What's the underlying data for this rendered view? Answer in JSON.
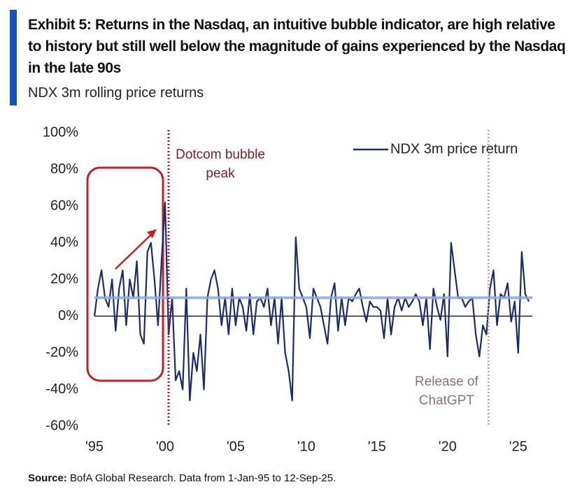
{
  "chart_data": {
    "type": "line",
    "title": "Exhibit 5: Returns in the Nasdaq, an intuitive bubble indicator, are high relative to history but still well below the magnitude of gains experienced by the Nasdaq in the late 90s",
    "subtitle": "NDX 3m rolling price returns",
    "source_label": "Source:",
    "source": "BofA Global Research. Data from 1-Jan-95 to 12-Sep-25.",
    "x": [
      1995,
      1995.25,
      1995.5,
      1995.75,
      1996,
      1996.25,
      1996.5,
      1996.75,
      1997,
      1997.25,
      1997.5,
      1997.75,
      1998,
      1998.25,
      1998.5,
      1998.75,
      1999,
      1999.25,
      1999.5,
      1999.75,
      2000,
      2000.25,
      2000.5,
      2000.75,
      2001,
      2001.25,
      2001.5,
      2001.75,
      2002,
      2002.25,
      2002.5,
      2002.75,
      2003,
      2003.25,
      2003.5,
      2003.75,
      2004,
      2004.25,
      2004.5,
      2004.75,
      2005,
      2005.25,
      2005.5,
      2005.75,
      2006,
      2006.25,
      2006.5,
      2006.75,
      2007,
      2007.25,
      2007.5,
      2007.75,
      2008,
      2008.25,
      2008.5,
      2008.75,
      2009,
      2009.25,
      2009.5,
      2009.75,
      2010,
      2010.25,
      2010.5,
      2010.75,
      2011,
      2011.25,
      2011.5,
      2011.75,
      2012,
      2012.25,
      2012.5,
      2012.75,
      2013,
      2013.25,
      2013.5,
      2013.75,
      2014,
      2014.25,
      2014.5,
      2014.75,
      2015,
      2015.25,
      2015.5,
      2015.75,
      2016,
      2016.25,
      2016.5,
      2016.75,
      2017,
      2017.25,
      2017.5,
      2017.75,
      2018,
      2018.25,
      2018.5,
      2018.75,
      2019,
      2019.25,
      2019.5,
      2019.75,
      2020,
      2020.25,
      2020.5,
      2020.75,
      2021,
      2021.25,
      2021.5,
      2021.75,
      2022,
      2022.25,
      2022.5,
      2022.75,
      2023,
      2023.25,
      2023.5,
      2023.75,
      2024,
      2024.25,
      2024.5,
      2024.75,
      2025,
      2025.25,
      2025.5,
      2025.75
    ],
    "series": [
      {
        "name": "NDX 3m price return",
        "color": "#1f2a6b",
        "values": [
          0,
          15,
          25,
          10,
          5,
          20,
          -8,
          15,
          25,
          -5,
          20,
          10,
          30,
          -10,
          -15,
          35,
          40,
          20,
          -5,
          30,
          62,
          -10,
          10,
          -35,
          -30,
          -40,
          15,
          -46,
          -20,
          -30,
          -10,
          -40,
          10,
          20,
          25,
          15,
          -5,
          10,
          -10,
          15,
          -5,
          10,
          5,
          -8,
          12,
          -10,
          8,
          10,
          5,
          15,
          -5,
          10,
          -15,
          10,
          -20,
          -30,
          -46,
          43,
          15,
          10,
          5,
          -12,
          15,
          10,
          5,
          -5,
          -15,
          10,
          18,
          -8,
          10,
          -5,
          10,
          8,
          12,
          15,
          5,
          -3,
          8,
          5,
          5,
          3,
          -12,
          10,
          -10,
          5,
          10,
          3,
          10,
          5,
          8,
          12,
          8,
          -5,
          10,
          -18,
          15,
          5,
          -2,
          12,
          -22,
          40,
          25,
          10,
          10,
          5,
          8,
          10,
          -10,
          -22,
          -5,
          -10,
          15,
          25,
          -5,
          12,
          10,
          18,
          -3,
          8,
          -20,
          35,
          12,
          8
        ]
      }
    ],
    "hlines": [
      {
        "value": 10,
        "color": "#8fa8d8"
      }
    ],
    "vlines": [
      {
        "value": 2000.25,
        "color": "#a01c2c",
        "text_color": "#7a1c28",
        "label": [
          "Dotcom bubble",
          "peak"
        ]
      },
      {
        "value": 2022.9,
        "color": "#c9a5b5",
        "text_color": "#8a7080",
        "label": [
          "Release of",
          "ChatGPT"
        ]
      }
    ],
    "xlim": [
      1995,
      2026
    ],
    "xticks": [
      {
        "value": 1995,
        "label": "'95"
      },
      {
        "value": 2000,
        "label": "'00"
      },
      {
        "value": 2005,
        "label": "'05"
      },
      {
        "value": 2010,
        "label": "'10"
      },
      {
        "value": 2015,
        "label": "'15"
      },
      {
        "value": 2020,
        "label": "'20"
      },
      {
        "value": 2025,
        "label": "'25"
      }
    ],
    "ylim": [
      -60,
      100
    ],
    "yticks": [
      {
        "value": -60,
        "label": "-60%"
      },
      {
        "value": -40,
        "label": "-40%"
      },
      {
        "value": -20,
        "label": "-20%"
      },
      {
        "value": 0,
        "label": "0%"
      },
      {
        "value": 20,
        "label": "20%"
      },
      {
        "value": 40,
        "label": "40%"
      },
      {
        "value": 60,
        "label": "60%"
      },
      {
        "value": 80,
        "label": "80%"
      },
      {
        "value": 100,
        "label": "100%"
      }
    ],
    "zero_line": true,
    "legend": "top-right"
  }
}
